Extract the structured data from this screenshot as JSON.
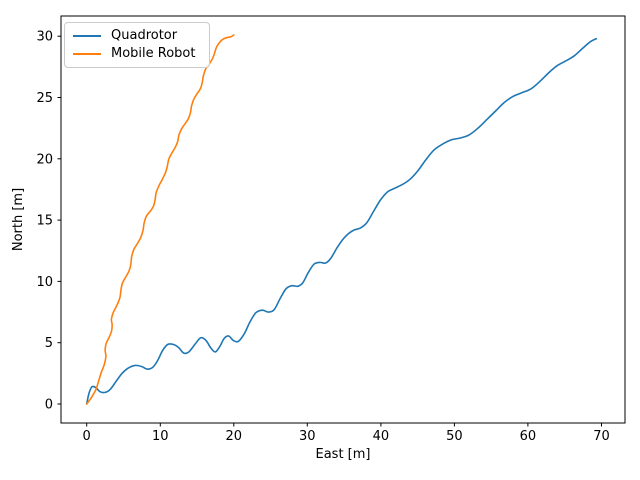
{
  "chart_data": {
    "type": "line",
    "title": "",
    "xlabel": "East [m]",
    "ylabel": "North [m]",
    "xlim": [
      -3.5,
      73.2
    ],
    "ylim": [
      -1.55,
      31.65
    ],
    "xticks": [
      0,
      10,
      20,
      30,
      40,
      50,
      60,
      70
    ],
    "yticks": [
      0,
      5,
      10,
      15,
      20,
      25,
      30
    ],
    "grid": false,
    "legend_position": "upper-left",
    "axis_color": "#000000",
    "background_color": "#ffffff",
    "legend_border_color": "#cccccc",
    "series": [
      {
        "name": "Quadrotor",
        "color": "#1f77b4",
        "points": [
          [
            0,
            0
          ],
          [
            0.3,
            0.85
          ],
          [
            0.7,
            1.4
          ],
          [
            1.2,
            1.35
          ],
          [
            1.8,
            1.0
          ],
          [
            2.5,
            0.95
          ],
          [
            3.2,
            1.2
          ],
          [
            4.0,
            1.85
          ],
          [
            4.8,
            2.5
          ],
          [
            5.7,
            2.95
          ],
          [
            6.6,
            3.15
          ],
          [
            7.5,
            3.05
          ],
          [
            8.2,
            2.85
          ],
          [
            8.9,
            2.95
          ],
          [
            9.6,
            3.5
          ],
          [
            10.3,
            4.35
          ],
          [
            11.0,
            4.85
          ],
          [
            11.8,
            4.85
          ],
          [
            12.5,
            4.6
          ],
          [
            13.2,
            4.15
          ],
          [
            13.9,
            4.25
          ],
          [
            14.7,
            4.85
          ],
          [
            15.5,
            5.4
          ],
          [
            16.2,
            5.2
          ],
          [
            16.9,
            4.55
          ],
          [
            17.5,
            4.25
          ],
          [
            18.1,
            4.7
          ],
          [
            18.7,
            5.35
          ],
          [
            19.3,
            5.55
          ],
          [
            19.9,
            5.2
          ],
          [
            20.6,
            5.1
          ],
          [
            21.4,
            5.7
          ],
          [
            22.2,
            6.7
          ],
          [
            23.0,
            7.45
          ],
          [
            23.9,
            7.65
          ],
          [
            24.7,
            7.5
          ],
          [
            25.5,
            7.7
          ],
          [
            26.3,
            8.6
          ],
          [
            27.1,
            9.4
          ],
          [
            27.9,
            9.65
          ],
          [
            28.7,
            9.6
          ],
          [
            29.4,
            9.9
          ],
          [
            30.1,
            10.7
          ],
          [
            30.9,
            11.4
          ],
          [
            31.7,
            11.55
          ],
          [
            32.5,
            11.5
          ],
          [
            33.2,
            11.9
          ],
          [
            34.0,
            12.7
          ],
          [
            34.8,
            13.4
          ],
          [
            35.6,
            13.9
          ],
          [
            36.4,
            14.2
          ],
          [
            37.2,
            14.35
          ],
          [
            38.1,
            14.8
          ],
          [
            39.0,
            15.7
          ],
          [
            39.9,
            16.6
          ],
          [
            40.9,
            17.3
          ],
          [
            41.9,
            17.6
          ],
          [
            42.9,
            17.9
          ],
          [
            43.9,
            18.3
          ],
          [
            45.0,
            19.0
          ],
          [
            46.1,
            19.9
          ],
          [
            47.2,
            20.7
          ],
          [
            48.4,
            21.2
          ],
          [
            49.6,
            21.55
          ],
          [
            50.8,
            21.7
          ],
          [
            52.0,
            21.95
          ],
          [
            53.2,
            22.5
          ],
          [
            54.4,
            23.2
          ],
          [
            55.6,
            23.9
          ],
          [
            56.8,
            24.6
          ],
          [
            58.0,
            25.1
          ],
          [
            59.2,
            25.4
          ],
          [
            60.4,
            25.7
          ],
          [
            61.6,
            26.3
          ],
          [
            62.8,
            27.0
          ],
          [
            64.0,
            27.6
          ],
          [
            65.2,
            28.0
          ],
          [
            66.3,
            28.4
          ],
          [
            67.4,
            29.0
          ],
          [
            68.5,
            29.55
          ],
          [
            69.3,
            29.8
          ]
        ]
      },
      {
        "name": "Mobile Robot",
        "color": "#ff7f0e",
        "points": [
          [
            0,
            0
          ],
          [
            0.5,
            0.4
          ],
          [
            0.9,
            0.8
          ],
          [
            1.3,
            1.25
          ],
          [
            1.6,
            1.85
          ],
          [
            2.0,
            2.6
          ],
          [
            2.4,
            3.25
          ],
          [
            2.6,
            3.9
          ],
          [
            2.5,
            4.4
          ],
          [
            2.65,
            4.95
          ],
          [
            3.1,
            5.5
          ],
          [
            3.4,
            6.0
          ],
          [
            3.45,
            6.5
          ],
          [
            3.35,
            6.9
          ],
          [
            3.6,
            7.45
          ],
          [
            4.1,
            8.05
          ],
          [
            4.5,
            8.65
          ],
          [
            4.65,
            9.25
          ],
          [
            4.85,
            9.85
          ],
          [
            5.3,
            10.35
          ],
          [
            5.75,
            10.85
          ],
          [
            6.0,
            11.4
          ],
          [
            6.1,
            12.0
          ],
          [
            6.4,
            12.6
          ],
          [
            6.9,
            13.1
          ],
          [
            7.35,
            13.6
          ],
          [
            7.65,
            14.15
          ],
          [
            7.8,
            14.75
          ],
          [
            8.1,
            15.3
          ],
          [
            8.6,
            15.7
          ],
          [
            9.05,
            16.1
          ],
          [
            9.3,
            16.65
          ],
          [
            9.45,
            17.25
          ],
          [
            9.85,
            17.85
          ],
          [
            10.3,
            18.35
          ],
          [
            10.7,
            18.85
          ],
          [
            10.95,
            19.4
          ],
          [
            11.15,
            19.95
          ],
          [
            11.55,
            20.45
          ],
          [
            12.0,
            20.9
          ],
          [
            12.35,
            21.4
          ],
          [
            12.55,
            21.95
          ],
          [
            12.9,
            22.45
          ],
          [
            13.35,
            22.85
          ],
          [
            13.8,
            23.25
          ],
          [
            14.1,
            23.75
          ],
          [
            14.25,
            24.3
          ],
          [
            14.55,
            24.85
          ],
          [
            15.0,
            25.3
          ],
          [
            15.45,
            25.7
          ],
          [
            15.7,
            26.2
          ],
          [
            15.85,
            26.75
          ],
          [
            16.15,
            27.3
          ],
          [
            16.6,
            27.7
          ],
          [
            17.05,
            28.1
          ],
          [
            17.35,
            28.55
          ],
          [
            17.6,
            29.05
          ],
          [
            18.0,
            29.45
          ],
          [
            18.5,
            29.75
          ],
          [
            19.1,
            29.9
          ],
          [
            19.6,
            29.95
          ],
          [
            20.0,
            30.1
          ]
        ]
      }
    ]
  }
}
